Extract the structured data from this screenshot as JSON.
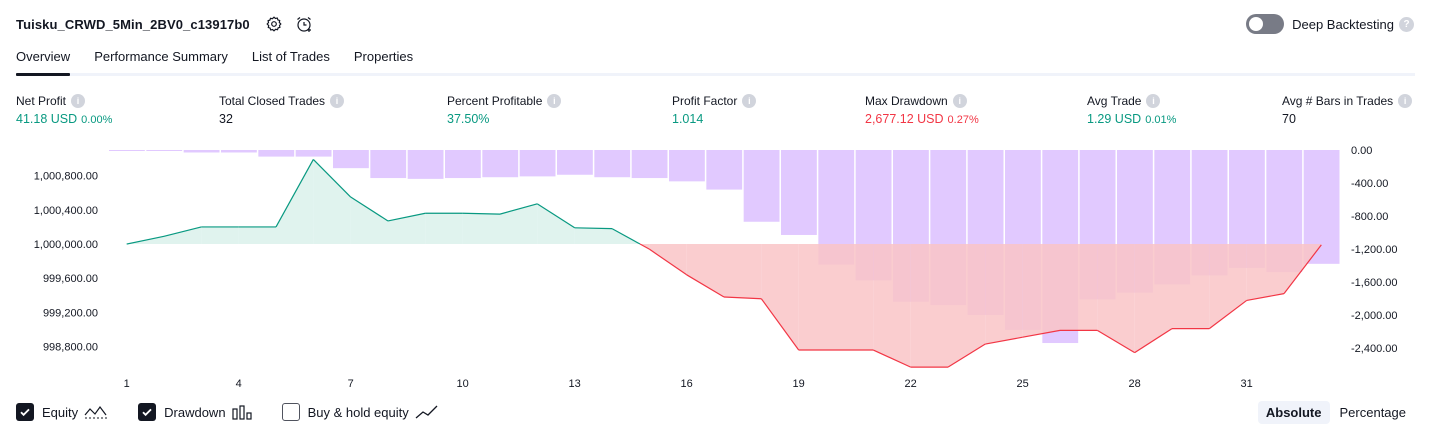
{
  "header": {
    "strategy_name": "Tuisku_CRWD_5Min_2BV0_c13917b0",
    "settings_icon": "gear-icon",
    "alert_icon": "alarm-clock-add-icon",
    "deep_backtesting_label": "Deep Backtesting",
    "deep_backtesting_enabled": false
  },
  "tabs": [
    {
      "label": "Overview",
      "active": true
    },
    {
      "label": "Performance Summary",
      "active": false
    },
    {
      "label": "List of Trades",
      "active": false
    },
    {
      "label": "Properties",
      "active": false
    }
  ],
  "metrics": {
    "net_profit": {
      "label": "Net Profit",
      "value": "41.18 USD",
      "pct": "0.00%"
    },
    "total_closed_trades": {
      "label": "Total Closed Trades",
      "value": "32"
    },
    "percent_profitable": {
      "label": "Percent Profitable",
      "value": "37.50%"
    },
    "profit_factor": {
      "label": "Profit Factor",
      "value": "1.014"
    },
    "max_drawdown": {
      "label": "Max Drawdown",
      "value": "2,677.12 USD",
      "pct": "0.27%"
    },
    "avg_trade": {
      "label": "Avg Trade",
      "value": "1.29 USD",
      "pct": "0.01%"
    },
    "avg_bars": {
      "label": "Avg # Bars in Trades",
      "value": "70"
    }
  },
  "chart_data": {
    "type": "area",
    "equity": {
      "baseline": 1000000,
      "x": [
        1,
        2,
        3,
        4,
        5,
        6,
        7,
        8,
        9,
        10,
        11,
        12,
        13,
        14,
        15,
        16,
        17,
        18,
        19,
        20,
        21,
        22,
        23,
        24,
        25,
        26,
        27,
        28,
        29,
        30,
        31,
        32,
        33
      ],
      "values": [
        1000000,
        1000090,
        1000200,
        1000200,
        1000200,
        1000990,
        1000550,
        1000270,
        1000360,
        1000360,
        1000350,
        1000470,
        1000190,
        1000180,
        999940,
        999640,
        999380,
        999360,
        998760,
        998760,
        998760,
        998560,
        998560,
        998830,
        998910,
        998990,
        998990,
        998730,
        999010,
        999010,
        999340,
        999420,
        999990
      ],
      "ylim": [
        998620,
        1001100
      ],
      "y_ticks": [
        "1,000,800.00",
        "1,000,400.00",
        "1,000,000.00",
        "999,600.00",
        "999,200.00",
        "998,800.00"
      ],
      "colors": {
        "profit_line": "#089981",
        "profit_fill": "#d6efe8",
        "loss_line": "#f23645",
        "loss_fill": "#f9c4c7"
      }
    },
    "drawdown": {
      "values": [
        0,
        0,
        -30,
        -30,
        -80,
        -80,
        -220,
        -340,
        -350,
        -340,
        -330,
        -320,
        -300,
        -330,
        -340,
        -380,
        -480,
        -870,
        -1030,
        -1390,
        -1580,
        -1840,
        -1880,
        -2000,
        -2180,
        -2340,
        -1810,
        -1730,
        -1630,
        -1520,
        -1430,
        -1480,
        -1380
      ],
      "ylim": [
        0,
        -2570
      ],
      "y_ticks": [
        "0.00",
        "-400.00",
        "-800.00",
        "-1,200.00",
        "-1,600.00",
        "-2,000.00",
        "-2,400.00"
      ],
      "color": "#e1c9ff"
    },
    "x_ticks": [
      "1",
      "4",
      "7",
      "10",
      "13",
      "16",
      "19",
      "22",
      "25",
      "28",
      "31"
    ]
  },
  "legend": [
    {
      "label": "Equity",
      "checked": true,
      "icon": "equity-area-icon"
    },
    {
      "label": "Drawdown",
      "checked": true,
      "icon": "drawdown-bars-icon"
    },
    {
      "label": "Buy & hold equity",
      "checked": false,
      "icon": "buy-hold-line-icon"
    }
  ],
  "modes": [
    {
      "label": "Absolute",
      "active": true
    },
    {
      "label": "Percentage",
      "active": false
    }
  ]
}
